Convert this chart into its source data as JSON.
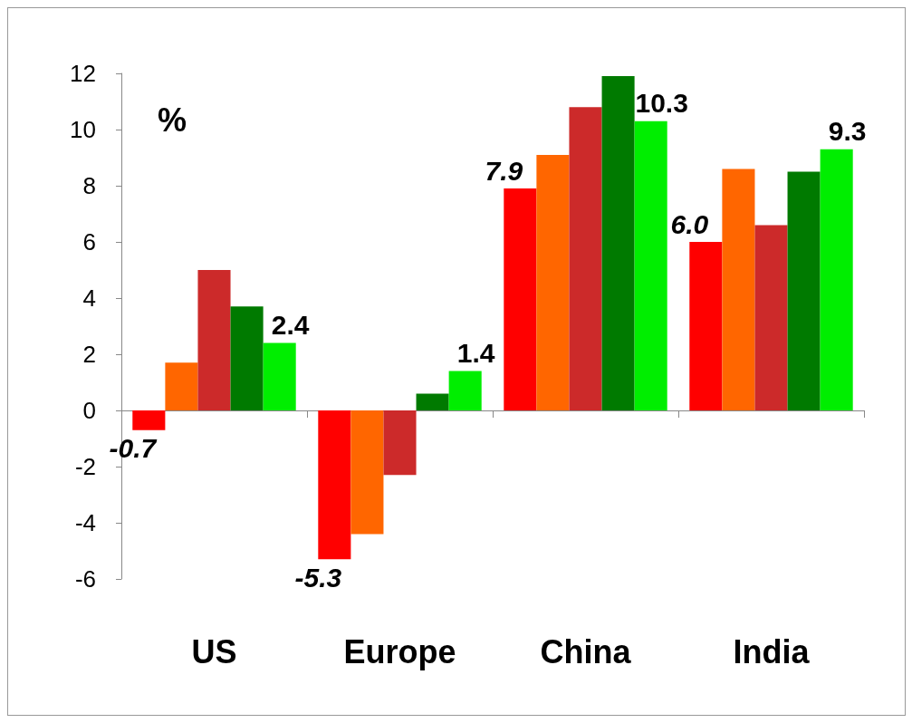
{
  "chart_data": {
    "type": "bar",
    "categories": [
      "US",
      "Europe",
      "China",
      "India"
    ],
    "series": [
      {
        "color": "#ff0000",
        "values": [
          -0.7,
          -5.3,
          7.9,
          6.0
        ],
        "value_labels": [
          "-0.7",
          "-5.3",
          "7.9",
          "6.0"
        ]
      },
      {
        "color": "#ff6600",
        "values": [
          1.7,
          -4.4,
          9.1,
          8.6
        ]
      },
      {
        "color": "#cc2a2a",
        "values": [
          5.0,
          -2.3,
          10.8,
          6.6
        ]
      },
      {
        "color": "#007a00",
        "values": [
          3.7,
          0.6,
          11.9,
          8.5
        ]
      },
      {
        "color": "#00ee00",
        "values": [
          2.4,
          1.4,
          10.3,
          9.3
        ],
        "value_labels": [
          "2.4",
          "1.4",
          "10.3",
          "9.3"
        ]
      }
    ],
    "ylim": [
      -6,
      12
    ],
    "yticks": [
      -6,
      -4,
      -2,
      0,
      2,
      4,
      6,
      8,
      10,
      12
    ],
    "annotations": [
      "%"
    ]
  }
}
